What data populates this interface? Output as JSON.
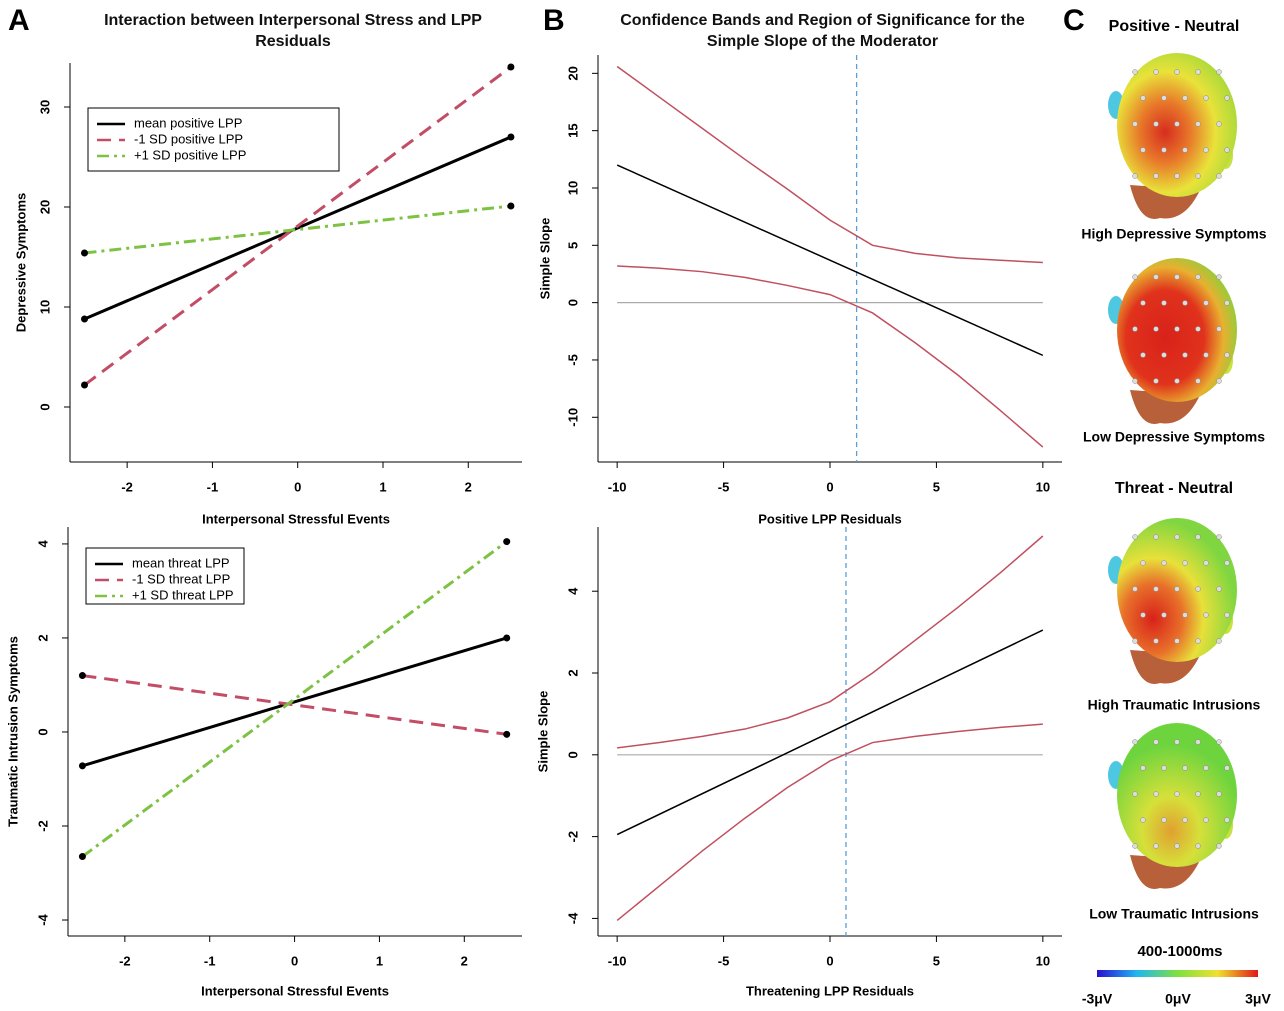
{
  "panels": [
    "A",
    "B",
    "C"
  ],
  "chart_data": [
    {
      "type": "line",
      "title": "Interaction between Interpersonal Stress and LPP Residuals",
      "xlabel": "Interpersonal Stressful Events",
      "ylabel": "Depressive Symptoms",
      "xlim": [
        -2.67,
        2.63
      ],
      "ylim": [
        -5.5,
        34.4
      ],
      "xticks": [
        -2,
        -1,
        0,
        1,
        2
      ],
      "yticks": [
        0,
        10,
        20,
        30
      ],
      "markers": true,
      "legend": "top left",
      "series": [
        {
          "name": "mean positive LPP",
          "color": "#000000",
          "dash": "solid",
          "x": [
            -2.5,
            2.5
          ],
          "values": [
            8.8,
            27
          ]
        },
        {
          "name": "-1 SD positive LPP",
          "color": "#c24d66",
          "dash": "dashed",
          "x": [
            -2.5,
            2.5
          ],
          "values": [
            2.2,
            34
          ]
        },
        {
          "name": "+1 SD positive LPP",
          "color": "#7dc242",
          "dash": "dashdot",
          "x": [
            -2.5,
            2.5
          ],
          "values": [
            15.4,
            20.1
          ]
        }
      ]
    },
    {
      "type": "line",
      "xlabel": "Interpersonal Stressful Events",
      "ylabel": "Traumatic Intrusion Symptoms",
      "xlim": [
        -2.67,
        2.68
      ],
      "ylim": [
        -4.34,
        4.36
      ],
      "xticks": [
        -2,
        -1,
        0,
        1,
        2
      ],
      "yticks": [
        -4,
        -2,
        0,
        2,
        4
      ],
      "markers": true,
      "legend": "top left",
      "series": [
        {
          "name": "mean threat LPP",
          "color": "#000000",
          "dash": "solid",
          "x": [
            -2.5,
            2.5
          ],
          "values": [
            -0.72,
            2.0
          ]
        },
        {
          "name": "-1 SD threat LPP",
          "color": "#c24d66",
          "dash": "dashed",
          "x": [
            -2.5,
            2.5
          ],
          "values": [
            1.2,
            -0.05
          ]
        },
        {
          "name": "+1 SD threat LPP",
          "color": "#7dc242",
          "dash": "dashdot",
          "x": [
            -2.5,
            2.5
          ],
          "values": [
            -2.65,
            4.05
          ]
        }
      ]
    },
    {
      "type": "line",
      "title": "Confidence Bands and Region of Significance for the Simple Slope of the Moderator",
      "xlabel": "Positive LPP Residuals",
      "ylabel": "Simple Slope",
      "xlim": [
        -10.9,
        10.9
      ],
      "ylim": [
        -13.9,
        21.6
      ],
      "xticks": [
        -10,
        -5,
        0,
        5,
        10
      ],
      "yticks": [
        -10,
        -5,
        0,
        5,
        10,
        15,
        20
      ],
      "markers": false,
      "hline": 0,
      "vline": 1.25,
      "series": [
        {
          "color": "#c0505f",
          "dash": "solid",
          "x": [
            -10,
            -8,
            -6,
            -4,
            -2,
            0,
            2,
            4,
            6,
            8,
            10
          ],
          "values": [
            20.6,
            17.9,
            15.2,
            12.5,
            9.9,
            7.2,
            5.0,
            4.3,
            3.9,
            3.7,
            3.5
          ]
        },
        {
          "color": "#c0505f",
          "dash": "solid",
          "x": [
            -10,
            -8,
            -6,
            -4,
            -2,
            0,
            2,
            4,
            6,
            8,
            10
          ],
          "values": [
            3.2,
            3.0,
            2.7,
            2.2,
            1.5,
            0.7,
            -0.9,
            -3.5,
            -6.3,
            -9.4,
            -12.6
          ]
        },
        {
          "color": "#000000",
          "dash": "solid",
          "x": [
            -10,
            10
          ],
          "values": [
            12,
            -4.6
          ]
        }
      ]
    },
    {
      "type": "line",
      "xlabel": "Threatening LPP Residuals",
      "ylabel": "Simple Slope",
      "xlim": [
        -10.9,
        10.9
      ],
      "ylim": [
        -4.43,
        5.57
      ],
      "xticks": [
        -10,
        -5,
        0,
        5,
        10
      ],
      "yticks": [
        -4,
        -2,
        0,
        2,
        4
      ],
      "markers": false,
      "hline": 0,
      "vline": 0.75,
      "series": [
        {
          "color": "#c0505f",
          "dash": "solid",
          "x": [
            -10,
            -8,
            -6,
            -4,
            -2,
            0,
            2,
            4,
            6,
            8,
            10
          ],
          "values": [
            0.17,
            0.3,
            0.45,
            0.63,
            0.9,
            1.3,
            2.0,
            2.8,
            3.6,
            4.45,
            5.35
          ]
        },
        {
          "color": "#c0505f",
          "dash": "solid",
          "x": [
            -10,
            -8,
            -6,
            -4,
            -2,
            0,
            2,
            4,
            6,
            8,
            10
          ],
          "values": [
            -4.05,
            -3.2,
            -2.35,
            -1.55,
            -0.8,
            -0.15,
            0.3,
            0.45,
            0.57,
            0.67,
            0.75
          ]
        },
        {
          "color": "#000000",
          "dash": "solid",
          "x": [
            -10,
            10
          ],
          "values": [
            -1.95,
            3.05
          ]
        }
      ]
    }
  ],
  "topomaps": [
    {
      "title": "Positive - Neutral",
      "labels": [
        "High Depressive Symptoms",
        "Low Depressive Symptoms"
      ]
    },
    {
      "title": "Threat - Neutral",
      "labels": [
        "High Traumatic Intrusions",
        "Low Traumatic Intrusions"
      ]
    }
  ],
  "colorbar": {
    "title": "400-1000ms",
    "labels": [
      "-3μV",
      "0μV",
      "3μV"
    ]
  }
}
